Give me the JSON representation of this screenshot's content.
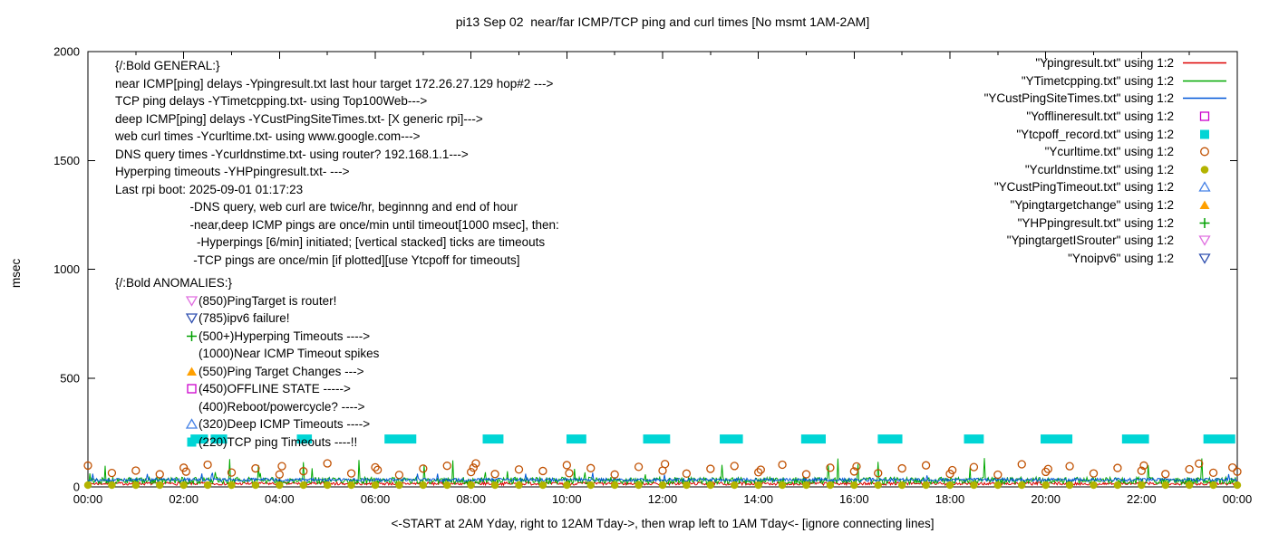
{
  "chart_data": {
    "type": "line",
    "title": "pi13 Sep 02  near/far ICMP/TCP ping and curl times [No msmt 1AM-2AM]",
    "xlabel": "<-START at 2AM Yday, right to 12AM Tday->, then wrap left to 1AM Tday<- [ignore connecting lines]",
    "ylabel": "msec",
    "xlim_hours": [
      0,
      24
    ],
    "ylim": [
      0,
      2000
    ],
    "grid": false,
    "x_tick_hours": [
      0,
      2,
      4,
      6,
      8,
      10,
      12,
      14,
      16,
      18,
      20,
      22,
      24
    ],
    "x_tick_labels": [
      "00:00",
      "02:00",
      "04:00",
      "06:00",
      "08:00",
      "10:00",
      "12:00",
      "14:00",
      "16:00",
      "18:00",
      "20:00",
      "22:00",
      "00:00"
    ],
    "y_ticks": [
      0,
      500,
      1000,
      1500,
      2000
    ],
    "legend": [
      {
        "label": "\"Ypingresult.txt\" using 1:2",
        "marker": "line",
        "color": "#dd0000"
      },
      {
        "label": "\"YTimetcpping.txt\" using 1:2",
        "marker": "line",
        "color": "#00a800"
      },
      {
        "label": "\"YCustPingSiteTimes.txt\" using 1:2",
        "marker": "line",
        "color": "#0057d8"
      },
      {
        "label": "\"Yofflineresult.txt\" using 1:2",
        "marker": "square-open",
        "color": "#cc00cc"
      },
      {
        "label": "\"Ytcpoff_record.txt\" using 1:2",
        "marker": "square-filled",
        "color": "#00d5d5"
      },
      {
        "label": "\"Ycurltime.txt\" using 1:2",
        "marker": "circle-open",
        "color": "#c05000"
      },
      {
        "label": "\"Ycurldnstime.txt\" using 1:2",
        "marker": "circle-filled",
        "color": "#b3b300"
      },
      {
        "label": "\"YCustPingTimeout.txt\" using 1:2",
        "marker": "triangle-open",
        "color": "#4682e6"
      },
      {
        "label": "\"Ypingtargetchange\" using 1:2",
        "marker": "triangle-filled",
        "color": "#ffa000"
      },
      {
        "label": "\"YHPpingresult.txt\" using 1:2",
        "marker": "plus",
        "color": "#00a000"
      },
      {
        "label": "\"YpingtargetISrouter\" using 1:2",
        "marker": "triangle-down-open",
        "color": "#e070e0"
      },
      {
        "label": "\"Ynoipv6\" using 1:2",
        "marker": "triangle-down-open",
        "color": "#3050b0"
      }
    ],
    "noise_traces": [
      {
        "name": "Ypingresult",
        "color": "#dd0000",
        "seed": 7,
        "base": 8,
        "noise": 14,
        "spike_prob": 0,
        "spike_base": 0,
        "spike_range": 0
      },
      {
        "name": "YTimetcpping",
        "color": "#00a800",
        "seed": 13,
        "base": 13,
        "noise": 32,
        "spike_prob": 0.02,
        "spike_base": 55,
        "spike_range": 80
      },
      {
        "name": "YCustPingSiteTimes",
        "color": "#0057d8",
        "seed": 29,
        "base": 25,
        "noise": 15,
        "spike_prob": 0.01,
        "spike_base": 45,
        "spike_range": 25
      }
    ],
    "tcp_timeout_bars": {
      "y_msec": 220,
      "color": "#00d5d5",
      "hour_ranges": [
        [
          2.2,
          2.45
        ],
        [
          2.62,
          2.85
        ],
        [
          4.42,
          4.62
        ],
        [
          6.25,
          6.8
        ],
        [
          8.3,
          8.62
        ],
        [
          10.05,
          10.35
        ],
        [
          11.65,
          12.1
        ],
        [
          13.25,
          13.62
        ],
        [
          14.95,
          15.35
        ],
        [
          16.55,
          16.95
        ],
        [
          18.35,
          18.65
        ],
        [
          19.95,
          20.5
        ],
        [
          21.65,
          22.1
        ],
        [
          23.35,
          23.9
        ]
      ]
    },
    "curl_points": {
      "color": "#c05000",
      "points": [
        [
          0,
          98
        ],
        [
          0.5,
          64
        ],
        [
          1,
          75
        ],
        [
          1.5,
          58
        ],
        [
          2,
          88
        ],
        [
          2.05,
          70
        ],
        [
          2.5,
          102
        ],
        [
          3,
          66
        ],
        [
          3.5,
          85
        ],
        [
          4,
          57
        ],
        [
          4.05,
          95
        ],
        [
          4.5,
          72
        ],
        [
          5,
          108
        ],
        [
          5.5,
          62
        ],
        [
          6,
          90
        ],
        [
          6.05,
          78
        ],
        [
          6.5,
          55
        ],
        [
          7,
          84
        ],
        [
          7.5,
          97
        ],
        [
          8,
          68
        ],
        [
          8.05,
          88
        ],
        [
          8.1,
          108
        ],
        [
          8.5,
          59
        ],
        [
          9,
          80
        ],
        [
          9.5,
          73
        ],
        [
          10,
          100
        ],
        [
          10.05,
          63
        ],
        [
          10.5,
          86
        ],
        [
          11,
          57
        ],
        [
          11.5,
          92
        ],
        [
          12,
          75
        ],
        [
          12.05,
          105
        ],
        [
          12.5,
          61
        ],
        [
          13,
          83
        ],
        [
          13.5,
          96
        ],
        [
          14,
          67
        ],
        [
          14.05,
          79
        ],
        [
          14.5,
          102
        ],
        [
          15,
          58
        ],
        [
          15.5,
          88
        ],
        [
          16,
          71
        ],
        [
          16.05,
          94
        ],
        [
          16.5,
          63
        ],
        [
          17,
          85
        ],
        [
          17.5,
          99
        ],
        [
          18,
          60
        ],
        [
          18.05,
          77
        ],
        [
          18.5,
          91
        ],
        [
          19,
          56
        ],
        [
          19.5,
          104
        ],
        [
          20,
          69
        ],
        [
          20.05,
          82
        ],
        [
          20.5,
          95
        ],
        [
          21,
          62
        ],
        [
          21.5,
          87
        ],
        [
          22,
          74
        ],
        [
          22.05,
          98
        ],
        [
          22.5,
          59
        ],
        [
          23,
          81
        ],
        [
          23.2,
          107
        ],
        [
          23.5,
          65
        ],
        [
          23.9,
          89
        ],
        [
          24,
          70
        ]
      ]
    },
    "dns_points": {
      "color": "#b3b300",
      "value_msec": 8,
      "start_hour": 0,
      "end_hour": 24,
      "step": 0.5
    },
    "annotations": {
      "general_lines": [
        "{/:Bold GENERAL:}",
        "near ICMP[ping] delays -Ypingresult.txt last hour target 172.26.27.129 hop#2 --->",
        "TCP ping delays -YTimetcpping.txt- using Top100Web--->",
        "deep ICMP[ping] delays -YCustPingSiteTimes.txt- [X generic rpi]--->",
        "web curl times -Ycurltime.txt- using www.google.com--->",
        "DNS query times -Ycurldnstime.txt- using router? 192.168.1.1--->",
        "Hyperping timeouts -YHPpingresult.txt- --->",
        "Last rpi boot: 2025-09-01 01:17:23",
        "                      -DNS query, web curl are twice/hr, beginnng and end of hour",
        "                      -near,deep ICMP pings are once/min until timeout[1000 msec], then:",
        "                        -Hyperpings [6/min] initiated; [vertical stacked] ticks are timeouts",
        "                       -TCP pings are once/min [if plotted][use Ytcpoff for timeouts]"
      ],
      "anomalies_header": "{/:Bold ANOMALIES:}",
      "anomaly_lines": [
        {
          "marker": "triangle-down-open",
          "color": "#e070e0",
          "text": "(850)PingTarget is router!"
        },
        {
          "marker": "triangle-down-open",
          "color": "#3050b0",
          "text": "(785)ipv6 failure!"
        },
        {
          "marker": "plus",
          "color": "#00a000",
          "text": "(500+)Hyperping Timeouts ---->"
        },
        {
          "marker": "none",
          "color": "",
          "text": "(1000)Near ICMP Timeout spikes"
        },
        {
          "marker": "triangle-filled",
          "color": "#ffa000",
          "text": "(550)Ping Target Changes --->"
        },
        {
          "marker": "square-open",
          "color": "#cc00cc",
          "text": "(450)OFFLINE STATE ----->"
        },
        {
          "marker": "none",
          "color": "",
          "text": "(400)Reboot/powercycle? ---->"
        },
        {
          "marker": "triangle-open",
          "color": "#4682e6",
          "text": "(320)Deep ICMP Timeouts ---->"
        },
        {
          "marker": "square-filled",
          "color": "#00d5d5",
          "text": "(220)TCP ping Timeouts ----!!"
        }
      ]
    }
  }
}
